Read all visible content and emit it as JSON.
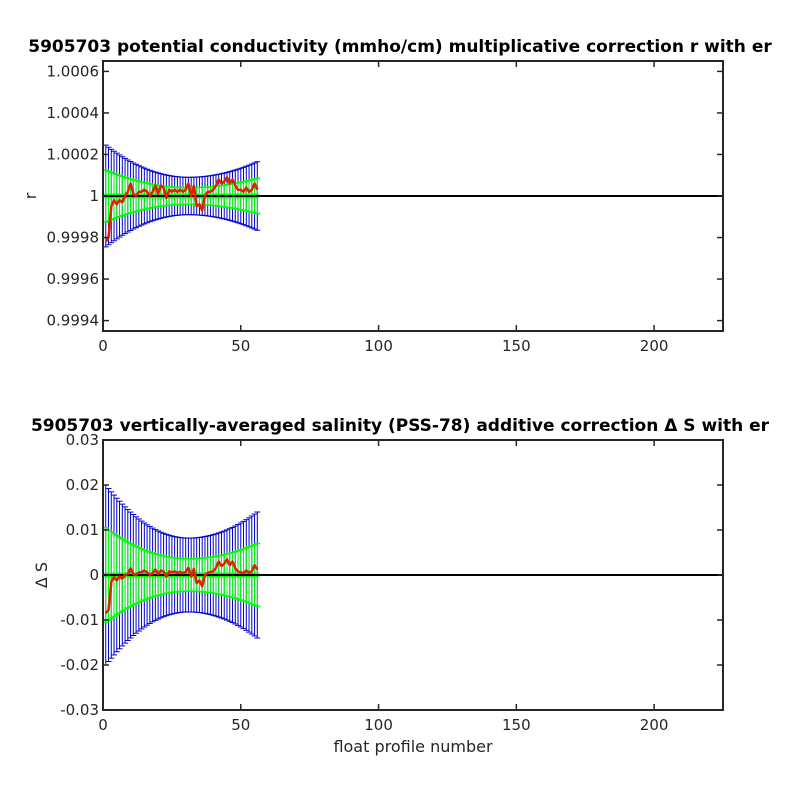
{
  "chart_data": [
    {
      "type": "line",
      "title": "5905703 potential conductivity (mmho/cm) multiplicative correction r with er",
      "xlabel": "",
      "ylabel": "r",
      "xlim": [
        0,
        225
      ],
      "ylim": [
        0.99935,
        1.00065
      ],
      "xticks": [
        0,
        50,
        100,
        150,
        200
      ],
      "xtick_labels": [
        "0",
        "50",
        "100",
        "150",
        "200"
      ],
      "yticks": [
        0.9994,
        0.9996,
        0.9998,
        1,
        1.0002,
        1.0004,
        1.0006
      ],
      "ytick_labels": [
        "0.9994",
        "0.9996",
        "0.9998",
        "1",
        "1.0002",
        "1.0004",
        "1.0006"
      ],
      "reference_line": 1,
      "grid": false,
      "colors": {
        "correction": "#e61e00",
        "inner_error": "#00ff00",
        "outer_error": "#0000cc",
        "reference": "#000000"
      },
      "series": [
        {
          "role": "correction",
          "x": [
            1,
            2,
            3,
            4,
            5,
            6,
            7,
            8,
            9,
            10,
            11,
            12,
            13,
            14,
            15,
            16,
            17,
            18,
            19,
            20,
            21,
            22,
            23,
            24,
            25,
            26,
            27,
            28,
            29,
            30,
            31,
            32,
            33,
            34,
            35,
            36,
            37,
            38,
            39,
            40,
            41,
            42,
            43,
            44,
            45,
            46,
            47,
            48,
            49,
            50,
            51,
            52,
            53,
            54,
            55,
            56
          ],
          "y": [
            0.99978,
            0.9998,
            0.99995,
            0.99998,
            0.99996,
            0.99998,
            0.99997,
            1.0,
            1.00002,
            1.00006,
            1.00001,
            1.0,
            1.00002,
            1.00002,
            1.00003,
            1.00002,
            1.0,
            1.00002,
            1.00005,
            1.00001,
            1.00005,
            1.00004,
            0.99999,
            1.00003,
            1.00002,
            1.00003,
            1.00002,
            1.00003,
            1.00002,
            1.00003,
            1.00006,
            1.0,
            1.00005,
            0.99995,
            0.99996,
            0.99993,
            1.0,
            1.00002,
            1.00002,
            1.00003,
            1.00005,
            1.00008,
            1.00006,
            1.00007,
            1.00009,
            1.00006,
            1.00008,
            1.00005,
            1.00003,
            1.00003,
            1.00002,
            1.00004,
            1.00002,
            1.00003,
            1.00006,
            1.00003
          ]
        },
        {
          "role": "inner_error",
          "x": [
            1,
            56
          ],
          "center": 1,
          "half_width_at_ends": [
            0.000125,
            8.5e-05
          ],
          "half_width_min": 4e-05,
          "min_at_x": 31
        },
        {
          "role": "outer_error",
          "x": [
            1,
            56
          ],
          "center": 1,
          "half_width_at_ends": [
            0.000245,
            0.000165
          ],
          "half_width_min": 9e-05,
          "min_at_x": 31
        }
      ]
    },
    {
      "type": "line",
      "title": "5905703 vertically-averaged salinity (PSS-78) additive correction Δ S with er",
      "xlabel": "float profile number",
      "ylabel": "Δ S",
      "xlim": [
        0,
        225
      ],
      "ylim": [
        -0.03,
        0.03
      ],
      "xticks": [
        0,
        50,
        100,
        150,
        200
      ],
      "xtick_labels": [
        "0",
        "50",
        "100",
        "150",
        "200"
      ],
      "yticks": [
        -0.03,
        -0.02,
        -0.01,
        0,
        0.01,
        0.02,
        0.03
      ],
      "ytick_labels": [
        "-0.03",
        "-0.02",
        "-0.01",
        "0",
        "0.01",
        "0.02",
        "0.03"
      ],
      "reference_line": 0,
      "grid": false,
      "colors": {
        "correction": "#e61e00",
        "inner_error": "#00ff00",
        "outer_error": "#0000cc",
        "reference": "#000000"
      },
      "series": [
        {
          "role": "correction",
          "x": [
            1,
            2,
            3,
            4,
            5,
            6,
            7,
            8,
            9,
            10,
            11,
            12,
            13,
            14,
            15,
            16,
            17,
            18,
            19,
            20,
            21,
            22,
            23,
            24,
            25,
            26,
            27,
            28,
            29,
            30,
            31,
            32,
            33,
            34,
            35,
            36,
            37,
            38,
            39,
            40,
            41,
            42,
            43,
            44,
            45,
            46,
            47,
            48,
            49,
            50,
            51,
            52,
            53,
            54,
            55,
            56
          ],
          "y": [
            -0.0085,
            -0.0078,
            -0.0015,
            -0.0005,
            -0.0012,
            -0.0003,
            -0.0008,
            0.0,
            0.0002,
            0.0015,
            0.0002,
            0.0,
            0.0006,
            0.0006,
            0.001,
            0.0006,
            0.0,
            0.0004,
            0.0012,
            0.0002,
            0.001,
            0.0008,
            -0.0004,
            0.0008,
            0.0006,
            0.0008,
            0.0005,
            0.0007,
            0.0004,
            0.0007,
            0.0016,
            -0.0003,
            0.0014,
            -0.0018,
            -0.0012,
            -0.0025,
            0.0,
            0.0005,
            0.0007,
            0.0008,
            0.0016,
            0.003,
            0.002,
            0.0025,
            0.0035,
            0.0022,
            0.003,
            0.0015,
            0.0008,
            0.0006,
            0.0004,
            0.001,
            0.0005,
            0.0008,
            0.0022,
            0.0012
          ]
        },
        {
          "role": "inner_error",
          "x": [
            1,
            56
          ],
          "center": 0,
          "half_width_at_ends": [
            0.0105,
            0.007
          ],
          "half_width_min": 0.0036,
          "min_at_x": 31
        },
        {
          "role": "outer_error",
          "x": [
            1,
            56
          ],
          "center": 0,
          "half_width_at_ends": [
            0.02,
            0.014
          ],
          "half_width_min": 0.0082,
          "min_at_x": 31
        }
      ]
    }
  ]
}
